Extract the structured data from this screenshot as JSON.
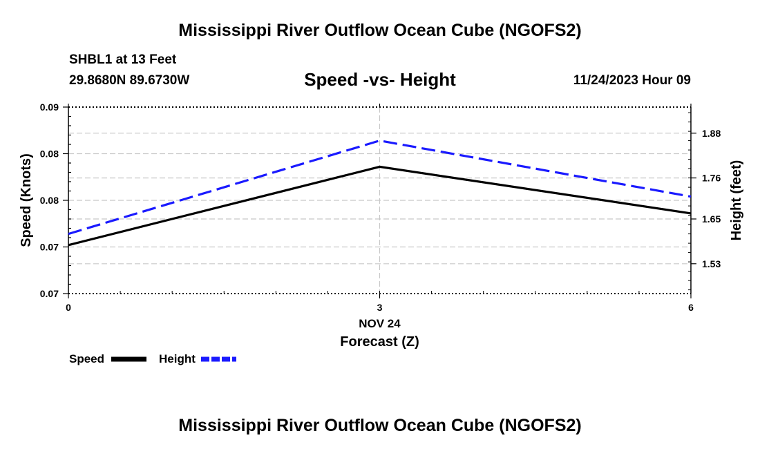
{
  "header": {
    "title": "Mississippi River Outflow Ocean Cube (NGOFS2)",
    "station": "SHBL1 at 13 Feet",
    "coords": "29.8680N  89.6730W",
    "subtitle": "Speed -vs- Height",
    "datetime": "11/24/2023 Hour 09"
  },
  "footer": {
    "title": "Mississippi River Outflow Ocean Cube (NGOFS2)"
  },
  "chart_data": {
    "type": "line",
    "title": "Speed -vs- Height",
    "x": [
      0,
      3,
      6
    ],
    "x_tick_labels": [
      "0",
      "3",
      "6"
    ],
    "x_date_label": "NOV 24",
    "xlabel": "Forecast (Z)",
    "xlim": [
      0,
      6
    ],
    "ylabel": "Speed (Knots)",
    "ylim": [
      0.07,
      0.09
    ],
    "y_ticks": [
      0.07,
      0.075,
      0.08,
      0.085,
      0.09
    ],
    "y_tick_labels": [
      "0.07",
      "0.07",
      "0.08",
      "0.08",
      "0.09"
    ],
    "y2label": "Height (feet)",
    "y2lim": [
      1.45,
      1.95
    ],
    "y2_ticks": [
      1.53,
      1.65,
      1.76,
      1.88
    ],
    "y2_tick_labels": [
      "1.53",
      "1.65",
      "1.76",
      "1.88"
    ],
    "grid": true,
    "legend_position": "bottom-left",
    "series": [
      {
        "name": "Speed",
        "axis": "left",
        "style": "solid",
        "color": "#000000",
        "values": [
          0.0752,
          0.0836,
          0.0786
        ]
      },
      {
        "name": "Height",
        "axis": "right",
        "style": "dashed",
        "color": "#1a1aff",
        "values": [
          1.61,
          1.86,
          1.71
        ]
      }
    ]
  }
}
